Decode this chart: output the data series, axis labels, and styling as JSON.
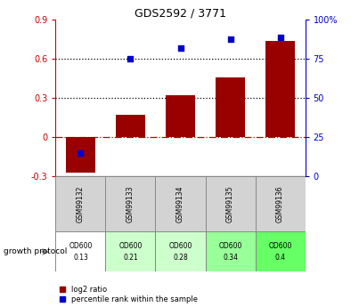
{
  "title": "GDS2592 / 3771",
  "categories": [
    "GSM99132",
    "GSM99133",
    "GSM99134",
    "GSM99135",
    "GSM99136"
  ],
  "log2_ratio": [
    -0.27,
    0.17,
    0.32,
    0.46,
    0.74
  ],
  "percentile_rank": [
    15,
    75,
    82,
    88,
    89
  ],
  "bar_color": "#990000",
  "dot_color": "#0000cc",
  "ylim_left": [
    -0.3,
    0.9
  ],
  "ylim_right": [
    0,
    100
  ],
  "yticks_left": [
    -0.3,
    0.0,
    0.3,
    0.6,
    0.9
  ],
  "yticks_right": [
    0,
    25,
    50,
    75,
    100
  ],
  "ytick_labels_left": [
    "-0.3",
    "0",
    "0.3",
    "0.6",
    "0.9"
  ],
  "ytick_labels_right": [
    "0",
    "25",
    "50",
    "75",
    "100%"
  ],
  "hlines": [
    0.3,
    0.6
  ],
  "zero_line_color": "#cc0000",
  "background_color": "#ffffff",
  "growth_protocol_label": "growth protocol",
  "growth_values": [
    "OD600\n0.13",
    "OD600\n0.21",
    "OD600\n0.28",
    "OD600\n0.34",
    "OD600\n0.4"
  ],
  "growth_colors": [
    "#ffffff",
    "#ccffcc",
    "#ccffcc",
    "#99ff99",
    "#66ff66"
  ],
  "legend_red_label": "log2 ratio",
  "legend_blue_label": "percentile rank within the sample",
  "bar_width": 0.6,
  "left_tick_color": "#cc0000",
  "right_tick_color": "#0000cc",
  "sample_bg_color": "#d3d3d3"
}
